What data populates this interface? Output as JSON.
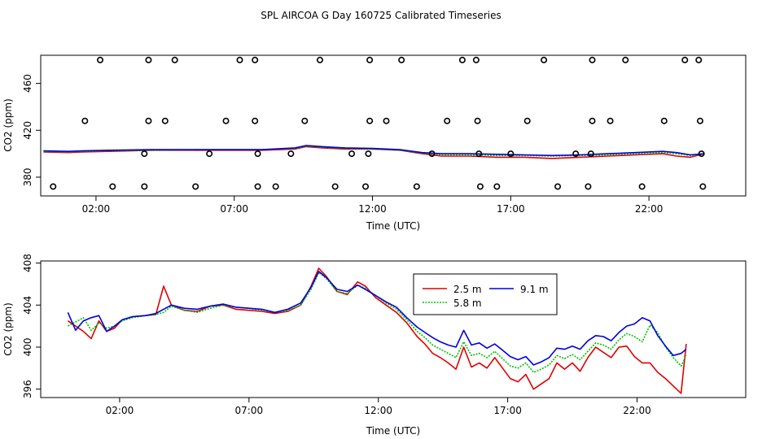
{
  "title": "SPL AIRCOA G  Day 160725  Calibrated Timeseries",
  "colors": {
    "s25": "#e00000",
    "s58": "#00c000",
    "s91": "#0000e0",
    "flag": "#000000",
    "frame": "#000000"
  },
  "chart_data": [
    {
      "type": "line",
      "panel": "top",
      "xlabel": "Time (UTC)",
      "ylabel": "CO2 (ppm)",
      "xlim": [
        0.0,
        25.5
      ],
      "ylim": [
        364,
        484
      ],
      "xticks": [
        2,
        7,
        12,
        17,
        22
      ],
      "xtick_labels": [
        "02:00",
        "07:00",
        "12:00",
        "17:00",
        "22:00"
      ],
      "yticks": [
        380,
        420,
        460
      ],
      "yticks_rotated": [
        380,
        420,
        460
      ],
      "grid": false,
      "flag_points": [
        [
          0.45,
          372
        ],
        [
          2.15,
          480
        ],
        [
          1.6,
          428
        ],
        [
          2.6,
          372
        ],
        [
          3.9,
          480
        ],
        [
          3.9,
          428
        ],
        [
          3.75,
          372
        ],
        [
          3.75,
          400
        ],
        [
          4.5,
          428
        ],
        [
          4.85,
          480
        ],
        [
          5.6,
          372
        ],
        [
          6.1,
          400
        ],
        [
          6.7,
          428
        ],
        [
          7.2,
          480
        ],
        [
          7.75,
          480
        ],
        [
          7.75,
          428
        ],
        [
          7.85,
          400
        ],
        [
          7.85,
          372
        ],
        [
          8.5,
          372
        ],
        [
          9.05,
          400
        ],
        [
          9.55,
          428
        ],
        [
          10.1,
          480
        ],
        [
          10.65,
          372
        ],
        [
          11.25,
          400
        ],
        [
          11.75,
          372
        ],
        [
          11.85,
          400
        ],
        [
          11.9,
          480
        ],
        [
          11.9,
          428
        ],
        [
          12.5,
          428
        ],
        [
          13.05,
          480
        ],
        [
          13.6,
          372
        ],
        [
          14.15,
          400
        ],
        [
          14.7,
          428
        ],
        [
          15.25,
          480
        ],
        [
          15.75,
          480
        ],
        [
          15.8,
          428
        ],
        [
          15.85,
          400
        ],
        [
          15.9,
          372
        ],
        [
          16.5,
          372
        ],
        [
          17.0,
          400
        ],
        [
          17.6,
          428
        ],
        [
          18.2,
          480
        ],
        [
          18.7,
          372
        ],
        [
          19.35,
          400
        ],
        [
          19.8,
          372
        ],
        [
          19.9,
          400
        ],
        [
          19.95,
          480
        ],
        [
          19.95,
          428
        ],
        [
          20.6,
          428
        ],
        [
          21.15,
          480
        ],
        [
          21.75,
          372
        ],
        [
          22.55,
          428
        ],
        [
          23.3,
          480
        ],
        [
          23.8,
          480
        ],
        [
          23.85,
          428
        ],
        [
          23.9,
          400
        ],
        [
          23.95,
          372
        ]
      ],
      "series": [
        {
          "color_key": "s25",
          "x": [
            0.1,
            1.0,
            1.5,
            2.5,
            4.0,
            6.0,
            8.0,
            9.2,
            9.6,
            10.2,
            11.0,
            12.0,
            13.0,
            13.8,
            14.5,
            15.5,
            16.5,
            17.5,
            18.5,
            19.5,
            20.5,
            21.5,
            22.5,
            23.0,
            23.5,
            24.0
          ],
          "y": [
            401.5,
            401,
            401.5,
            402,
            403,
            403,
            403,
            404,
            406,
            405,
            404,
            404,
            403,
            400,
            398,
            398,
            397,
            397,
            396,
            397,
            398,
            399,
            400,
            398,
            397,
            400
          ]
        },
        {
          "color_key": "s58",
          "x": [
            0.1,
            1.0,
            1.5,
            2.5,
            4.0,
            6.0,
            8.0,
            9.2,
            9.6,
            10.2,
            11.0,
            12.0,
            13.0,
            13.8,
            14.5,
            15.5,
            16.5,
            17.5,
            18.5,
            19.5,
            20.5,
            21.5,
            22.5,
            23.0,
            23.5,
            24.0
          ],
          "y": [
            402,
            401.5,
            402,
            402.5,
            403,
            403.5,
            403.5,
            404.5,
            406.5,
            405.5,
            404.5,
            404,
            403,
            400.5,
            399,
            399,
            398.5,
            398.5,
            398,
            398.5,
            399,
            400,
            401,
            400,
            398.5,
            400
          ]
        },
        {
          "color_key": "s91",
          "x": [
            0.1,
            1.0,
            1.5,
            2.5,
            4.0,
            6.0,
            8.0,
            9.2,
            9.6,
            10.2,
            11.0,
            12.0,
            13.0,
            13.8,
            14.5,
            15.5,
            16.5,
            17.5,
            18.5,
            19.5,
            20.5,
            21.5,
            22.5,
            23.0,
            23.5,
            24.0
          ],
          "y": [
            402.5,
            402,
            402.5,
            403,
            403.5,
            403.5,
            403.5,
            405,
            407,
            406,
            405,
            404.5,
            403.5,
            401,
            400,
            400,
            399.5,
            399,
            398.5,
            399,
            400,
            401,
            402,
            401,
            399,
            400
          ]
        }
      ]
    },
    {
      "type": "line",
      "panel": "bottom",
      "xlabel": "Time (UTC)",
      "ylabel": "CO2 (ppm)",
      "xlim": [
        -1.05,
        26.2
      ],
      "ylim": [
        395.2,
        408.2
      ],
      "xticks": [
        2,
        7,
        12,
        17,
        22
      ],
      "xtick_labels": [
        "02:00",
        "07:00",
        "12:00",
        "17:00",
        "22:00"
      ],
      "yticks": [
        396,
        400,
        404,
        408
      ],
      "grid": false,
      "legend": {
        "placement": "top-center",
        "entries": [
          {
            "name": "2.5 m",
            "color_key": "s25"
          },
          {
            "name": "9.1 m",
            "color_key": "s91"
          },
          {
            "name": "5.8 m",
            "color_key": "s58"
          }
        ]
      },
      "series": [
        {
          "name": "2.5 m",
          "color_key": "s25",
          "x": [
            0.0,
            0.3,
            0.6,
            0.9,
            1.2,
            1.5,
            1.8,
            2.1,
            2.5,
            3.0,
            3.4,
            3.7,
            4.0,
            4.5,
            5.0,
            5.5,
            6.0,
            6.5,
            7.0,
            7.5,
            8.0,
            8.5,
            9.0,
            9.4,
            9.7,
            10.0,
            10.4,
            10.8,
            11.2,
            11.5,
            11.9,
            12.3,
            12.7,
            13.1,
            13.5,
            13.8,
            14.1,
            14.4,
            14.7,
            15.0,
            15.3,
            15.6,
            15.9,
            16.2,
            16.5,
            16.8,
            17.1,
            17.4,
            17.7,
            18.0,
            18.3,
            18.6,
            18.9,
            19.2,
            19.5,
            19.8,
            20.1,
            20.4,
            20.7,
            21.0,
            21.3,
            21.6,
            21.9,
            22.2,
            22.5,
            22.8,
            23.1,
            23.4,
            23.7,
            23.9
          ],
          "y": [
            402.5,
            402.0,
            401.5,
            400.8,
            402.5,
            401.5,
            401.8,
            402.6,
            402.9,
            403.0,
            403.1,
            405.8,
            404.0,
            403.5,
            403.4,
            403.9,
            404.0,
            403.6,
            403.5,
            403.4,
            403.2,
            403.4,
            404.0,
            405.8,
            407.5,
            406.7,
            405.3,
            405.0,
            406.2,
            405.8,
            404.7,
            404.0,
            403.3,
            402.3,
            401.0,
            400.3,
            399.4,
            399.0,
            398.5,
            397.9,
            400.0,
            398.1,
            398.5,
            398.0,
            399.0,
            398.0,
            397.0,
            396.7,
            397.4,
            396.0,
            396.5,
            397.0,
            398.5,
            397.9,
            398.5,
            397.7,
            399.0,
            400.0,
            399.5,
            399.0,
            400.0,
            400.1,
            399.1,
            398.5,
            398.5,
            397.6,
            397.0,
            396.3,
            395.6,
            400.3
          ]
        },
        {
          "name": "5.8 m",
          "color_key": "s58",
          "x": [
            0.0,
            0.3,
            0.6,
            0.9,
            1.2,
            1.5,
            1.8,
            2.1,
            2.5,
            3.0,
            3.4,
            3.7,
            4.0,
            4.5,
            5.0,
            5.5,
            6.0,
            6.5,
            7.0,
            7.5,
            8.0,
            8.5,
            9.0,
            9.4,
            9.7,
            10.0,
            10.4,
            10.8,
            11.2,
            11.5,
            11.9,
            12.3,
            12.7,
            13.1,
            13.5,
            13.8,
            14.1,
            14.4,
            14.7,
            15.0,
            15.3,
            15.6,
            15.9,
            16.2,
            16.5,
            16.8,
            17.1,
            17.4,
            17.7,
            18.0,
            18.3,
            18.6,
            18.9,
            19.2,
            19.5,
            19.8,
            20.1,
            20.4,
            20.7,
            21.0,
            21.3,
            21.6,
            21.9,
            22.2,
            22.5,
            22.8,
            23.1,
            23.4,
            23.7,
            23.9
          ],
          "y": [
            402.0,
            402.4,
            402.8,
            401.6,
            402.3,
            401.8,
            402.0,
            402.5,
            402.8,
            403.0,
            403.1,
            403.3,
            403.9,
            403.5,
            403.3,
            403.7,
            404.0,
            403.8,
            403.7,
            403.5,
            403.3,
            403.5,
            404.0,
            405.5,
            407.1,
            406.5,
            405.3,
            405.1,
            405.9,
            405.6,
            404.9,
            404.2,
            403.6,
            402.6,
            401.5,
            400.9,
            400.2,
            399.8,
            399.4,
            399.0,
            400.5,
            399.2,
            399.4,
            399.0,
            399.6,
            398.9,
            398.2,
            398.0,
            398.5,
            397.6,
            397.9,
            398.3,
            399.2,
            398.9,
            399.3,
            398.8,
            399.6,
            400.4,
            400.2,
            399.8,
            400.7,
            401.3,
            401.0,
            400.5,
            402.1,
            401.4,
            400.0,
            399.0,
            398.2,
            399.2
          ]
        },
        {
          "name": "9.1 m",
          "color_key": "s91",
          "x": [
            0.0,
            0.3,
            0.6,
            0.9,
            1.2,
            1.5,
            1.8,
            2.1,
            2.5,
            3.0,
            3.4,
            3.7,
            4.0,
            4.5,
            5.0,
            5.5,
            6.0,
            6.5,
            7.0,
            7.5,
            8.0,
            8.5,
            9.0,
            9.4,
            9.7,
            10.0,
            10.4,
            10.8,
            11.2,
            11.5,
            11.9,
            12.3,
            12.7,
            13.1,
            13.5,
            13.8,
            14.1,
            14.4,
            14.7,
            15.0,
            15.3,
            15.6,
            15.9,
            16.2,
            16.5,
            16.8,
            17.1,
            17.4,
            17.7,
            18.0,
            18.3,
            18.6,
            18.9,
            19.2,
            19.5,
            19.8,
            20.1,
            20.4,
            20.7,
            21.0,
            21.3,
            21.6,
            21.9,
            22.2,
            22.5,
            22.8,
            23.1,
            23.4,
            23.7,
            23.9
          ],
          "y": [
            403.3,
            401.6,
            402.5,
            402.8,
            403.0,
            401.5,
            402.0,
            402.6,
            402.9,
            403.0,
            403.2,
            403.6,
            404.0,
            403.7,
            403.6,
            403.9,
            404.1,
            403.8,
            403.7,
            403.6,
            403.3,
            403.6,
            404.2,
            405.7,
            407.2,
            406.6,
            405.5,
            405.3,
            405.9,
            405.5,
            404.9,
            404.3,
            403.8,
            402.8,
            401.9,
            401.4,
            400.9,
            400.5,
            400.2,
            400.0,
            401.6,
            400.2,
            400.4,
            399.9,
            400.3,
            399.7,
            399.1,
            398.8,
            399.1,
            398.3,
            398.6,
            399.0,
            399.9,
            399.8,
            400.1,
            399.8,
            400.6,
            401.1,
            401.0,
            400.6,
            401.4,
            402.0,
            402.2,
            402.8,
            402.5,
            401.1,
            400.1,
            399.2,
            399.4,
            399.8
          ]
        }
      ]
    }
  ]
}
